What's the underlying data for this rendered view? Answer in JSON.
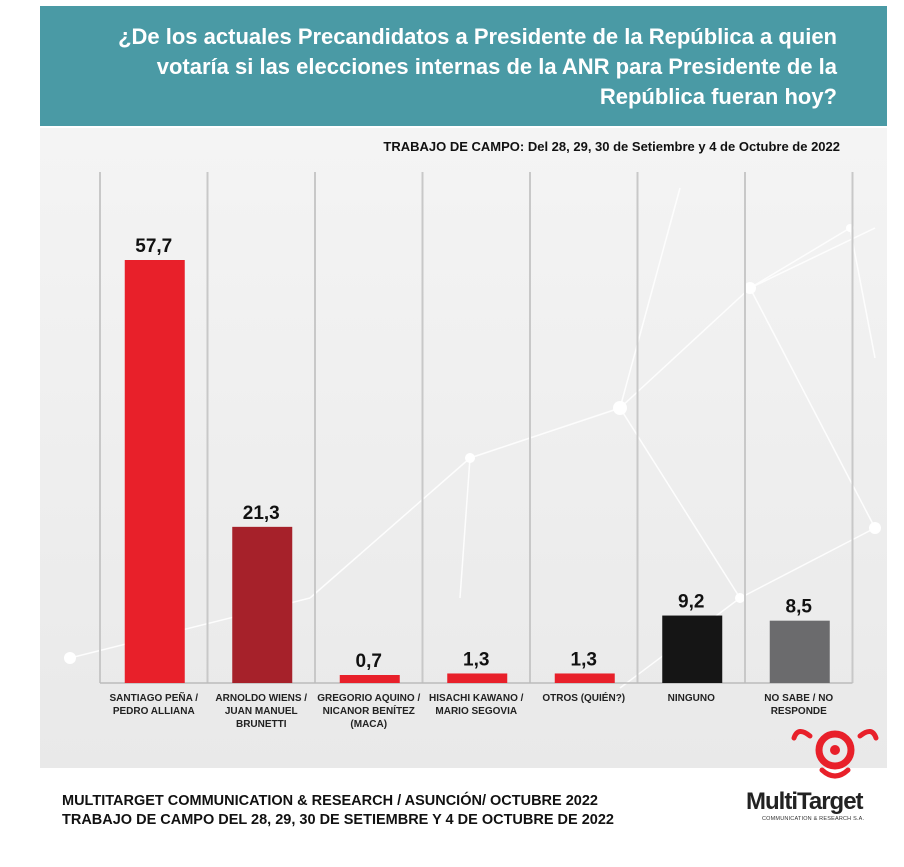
{
  "header": {
    "question": "¿De los actuales Precandidatos a Presidente de la República a quien votaría si las elecciones internas de la ANR para Presidente de la República fueran hoy?",
    "fieldwork": "TRABAJO DE CAMPO: Del 28, 29, 30  de Setiembre y 4  de Octubre  de  2022"
  },
  "chart_data": {
    "type": "bar",
    "title": "¿De los actuales Precandidatos a Presidente de la República a quien votaría si las elecciones internas de la ANR para Presidente de la República fueran hoy?",
    "categories": [
      [
        "SANTIAGO PEÑA /",
        "PEDRO ALLIANA"
      ],
      [
        "ARNOLDO WIENS /",
        "JUAN MANUEL",
        "BRUNETTI"
      ],
      [
        "GREGORIO AQUINO /",
        "NICANOR BENÍTEZ",
        "(MACA)"
      ],
      [
        "HISACHI KAWANO /",
        "MARIO SEGOVIA"
      ],
      [
        "OTROS (QUIÉN?)"
      ],
      [
        "NINGUNO"
      ],
      [
        "NO SABE / NO",
        "RESPONDE"
      ]
    ],
    "values": [
      57.7,
      21.3,
      0.7,
      1.3,
      1.3,
      9.2,
      8.5
    ],
    "value_labels": [
      "57,7",
      "21,3",
      "0,7",
      "1,3",
      "1,3",
      "9,2",
      "8,5"
    ],
    "colors": [
      "#e8202a",
      "#a6212a",
      "#e8202a",
      "#e8202a",
      "#e8202a",
      "#151515",
      "#6b6b6d"
    ],
    "ylim": [
      0,
      60
    ],
    "xlabel": "",
    "ylabel": ""
  },
  "footer": {
    "line1": "MULTITARGET COMMUNICATION & RESEARCH / ASUNCIÓN/ OCTUBRE 2022",
    "line2": "TRABAJO DE CAMPO DEL 28, 29, 30  DE SETIEMBRE Y 4  DE OCTUBRE  DE  2022"
  },
  "logo": {
    "name": "MultiTarget",
    "subtitle": "COMMUNICATION & RESEARCH S.A."
  }
}
